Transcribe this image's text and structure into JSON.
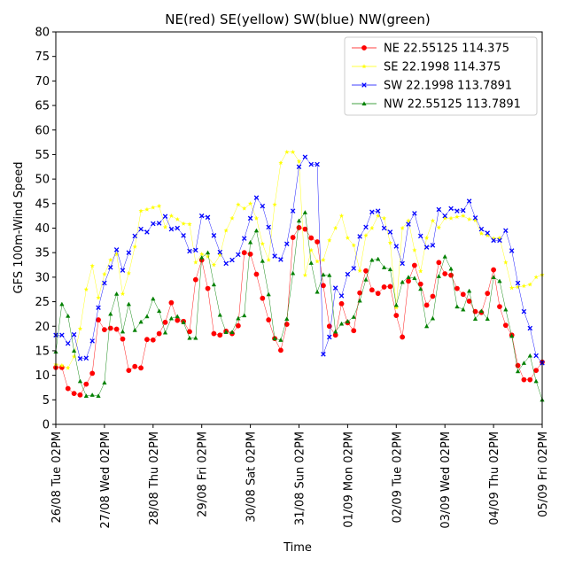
{
  "chart_data": {
    "type": "line",
    "title": "NE(red) SE(yellow) SW(blue) NW(green)",
    "xlabel": "Time",
    "ylabel": "GFS 100m-Wind Speed",
    "ylim": [
      0,
      80
    ],
    "yticks": [
      0,
      5,
      10,
      15,
      20,
      25,
      30,
      35,
      40,
      45,
      50,
      55,
      60,
      65,
      70,
      75,
      80
    ],
    "xlim": [
      0,
      240
    ],
    "xticks": [
      {
        "x": 0,
        "label": "26/08 Tue 02PM"
      },
      {
        "x": 24,
        "label": "27/08 Wed 02PM"
      },
      {
        "x": 48,
        "label": "28/08 Thu 02PM"
      },
      {
        "x": 72,
        "label": "29/08 Fri 02PM"
      },
      {
        "x": 96,
        "label": "30/08 Sat 02PM"
      },
      {
        "x": 120,
        "label": "31/08 Sun 02PM"
      },
      {
        "x": 144,
        "label": "01/09 Mon 02PM"
      },
      {
        "x": 168,
        "label": "02/09 Tue 02PM"
      },
      {
        "x": 192,
        "label": "03/09 Wed 02PM"
      },
      {
        "x": 216,
        "label": "04/09 Thu 02PM"
      },
      {
        "x": 240,
        "label": "05/09 Fri 02PM"
      }
    ],
    "legend_position": "top-right",
    "x": [
      0,
      3,
      6,
      9,
      12,
      15,
      18,
      21,
      24,
      27,
      30,
      33,
      36,
      39,
      42,
      45,
      48,
      51,
      54,
      57,
      60,
      63,
      66,
      69,
      72,
      75,
      78,
      81,
      84,
      87,
      90,
      93,
      96,
      99,
      102,
      105,
      108,
      111,
      114,
      117,
      120,
      123,
      126,
      129,
      132,
      135,
      138,
      141,
      144,
      147,
      150,
      153,
      156,
      159,
      162,
      165,
      168,
      171,
      174,
      177,
      180,
      183,
      186,
      189,
      192,
      195,
      198,
      201,
      204,
      207,
      210,
      213,
      216,
      219,
      222,
      225,
      228,
      231,
      234,
      237,
      240
    ],
    "series": [
      {
        "name": "NE 22.55125 114.375",
        "color": "#ff0000",
        "marker": "circle",
        "values": [
          11.6,
          11.6,
          7.3,
          6.3,
          6.0,
          8.2,
          10.4,
          21.3,
          19.3,
          19.6,
          19.4,
          17.4,
          11.0,
          11.8,
          11.5,
          17.3,
          17.2,
          18.5,
          20.8,
          24.8,
          21.2,
          21.0,
          18.9,
          29.5,
          33.5,
          27.7,
          18.5,
          18.2,
          19.0,
          18.5,
          20.1,
          35.0,
          34.7,
          30.6,
          25.7,
          21.3,
          17.5,
          15.1,
          20.4,
          38.1,
          40.1,
          39.8,
          38.0,
          37.2,
          28.3,
          20.0,
          18.2,
          24.6,
          20.7,
          19.1,
          26.8,
          31.3,
          27.4,
          26.7,
          28.0,
          28.1,
          22.2,
          17.8,
          29.2,
          32.4,
          28.6,
          24.3,
          26.1,
          33.0,
          30.7,
          30.4,
          27.7,
          26.5,
          25.1,
          23.0,
          22.8,
          26.7,
          31.5,
          24.0,
          20.2,
          18.2,
          12.0,
          9.1,
          9.1,
          11.0,
          12.7
        ]
      },
      {
        "name": "SE 22.1998 114.375",
        "color": "#ffff00",
        "marker": "star",
        "values": [
          12.2,
          12.0,
          11.5,
          13.8,
          19.5,
          27.5,
          32.3,
          25.8,
          30.6,
          33.5,
          34.7,
          26.6,
          30.8,
          36.2,
          43.5,
          43.8,
          44.2,
          44.5,
          40.2,
          42.5,
          41.8,
          40.9,
          40.8,
          33.0,
          34.7,
          34.2,
          32.5,
          34.5,
          39.5,
          42.0,
          44.8,
          44.0,
          45.0,
          42.0,
          36.8,
          33.5,
          44.8,
          53.3,
          55.5,
          55.5,
          53.6,
          30.4,
          35.5,
          33.2,
          33.5,
          37.5,
          40.0,
          42.5,
          38.0,
          36.5,
          31.3,
          38.5,
          40.0,
          42.5,
          42.0,
          37.0,
          23.8,
          40.0,
          41.5,
          35.5,
          31.2,
          38.0,
          41.5,
          40.1,
          42.0,
          42.0,
          42.3,
          42.5,
          41.8,
          41.6,
          38.9,
          38.5,
          37.9,
          38.0,
          33.0,
          27.8,
          28.0,
          28.2,
          28.5,
          30.0,
          30.5
        ]
      },
      {
        "name": "SW 22.1998 113.7891",
        "color": "#0000ff",
        "marker": "x",
        "values": [
          18.2,
          18.2,
          16.5,
          18.3,
          13.4,
          13.5,
          17.0,
          23.8,
          28.8,
          32.0,
          35.6,
          31.4,
          35.0,
          38.4,
          39.8,
          39.2,
          40.9,
          41.0,
          42.4,
          39.8,
          40.0,
          38.5,
          35.3,
          35.5,
          42.5,
          42.2,
          38.5,
          35.1,
          32.8,
          33.5,
          34.6,
          37.9,
          42.0,
          46.2,
          44.5,
          40.2,
          34.3,
          33.6,
          36.8,
          43.5,
          52.5,
          54.5,
          53.0,
          53.0,
          14.3,
          17.8,
          27.8,
          26.2,
          30.6,
          31.8,
          38.3,
          40.2,
          43.3,
          43.5,
          40.0,
          39.2,
          36.3,
          32.8,
          40.8,
          43.0,
          38.4,
          36.1,
          36.5,
          43.8,
          42.5,
          44.0,
          43.5,
          43.6,
          45.5,
          42.1,
          39.8,
          39.0,
          37.5,
          37.5,
          39.5,
          35.4,
          28.8,
          23.0,
          19.6,
          14.0,
          12.5
        ]
      },
      {
        "name": "NW 22.55125 113.7891",
        "color": "#008000",
        "marker": "triangle",
        "values": [
          14.8,
          24.5,
          22.1,
          15.0,
          8.8,
          5.8,
          6.0,
          5.8,
          8.5,
          22.5,
          26.6,
          18.9,
          24.5,
          19.2,
          20.9,
          22.0,
          25.6,
          23.1,
          18.7,
          21.6,
          22.0,
          20.8,
          17.6,
          17.6,
          34.0,
          35.0,
          28.5,
          22.3,
          18.8,
          18.8,
          21.6,
          22.2,
          37.1,
          39.5,
          33.3,
          26.5,
          17.5,
          17.2,
          21.5,
          30.8,
          41.5,
          43.2,
          32.9,
          27.0,
          30.5,
          30.4,
          18.9,
          20.5,
          21.0,
          21.9,
          25.2,
          29.5,
          33.5,
          33.7,
          32.0,
          31.6,
          24.3,
          29.0,
          30.0,
          29.8,
          27.6,
          20.0,
          21.6,
          30.2,
          34.2,
          31.7,
          24.0,
          23.4,
          27.2,
          21.5,
          23.1,
          21.5,
          30.0,
          29.2,
          23.4,
          18.0,
          10.8,
          12.5,
          14.0,
          8.8,
          5.0
        ]
      }
    ]
  }
}
